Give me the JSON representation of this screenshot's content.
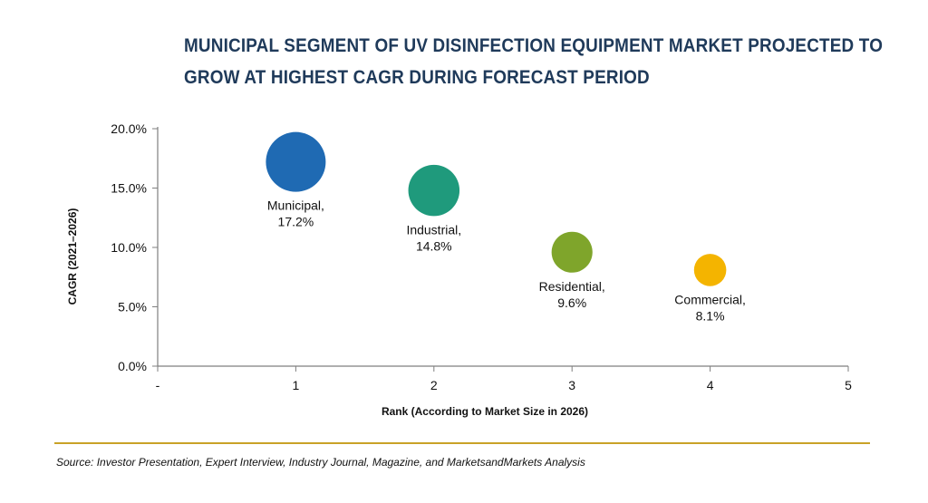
{
  "title_lines": [
    "MUNICIPAL SEGMENT OF UV DISINFECTION EQUIPMENT MARKET PROJECTED TO",
    "GROW AT HIGHEST CAGR DURING FORECAST PERIOD"
  ],
  "source": "Source: Investor Presentation, Expert Interview, Industry Journal, Magazine, and MarketsandMarkets Analysis",
  "chart_data": {
    "type": "scatter",
    "title": "MUNICIPAL SEGMENT OF UV DISINFECTION EQUIPMENT MARKET PROJECTED TO GROW AT HIGHEST CAGR DURING FORECAST PERIOD",
    "xlabel": "Rank (According to Market Size in 2026)",
    "ylabel": "CAGR (2021–2026)",
    "xlim": [
      0,
      5
    ],
    "ylim": [
      0,
      20
    ],
    "x_ticks": [
      "-",
      "1",
      "2",
      "3",
      "4",
      "5"
    ],
    "y_ticks": [
      "0.0%",
      "5.0%",
      "10.0%",
      "15.0%",
      "20.0%"
    ],
    "grid": false,
    "points": [
      {
        "label": "Municipal,",
        "value_label": "17.2%",
        "x": 1,
        "y": 17.2,
        "bubble_size": 1.0,
        "color": "#1f6ab3"
      },
      {
        "label": "Industrial,",
        "value_label": "14.8%",
        "x": 2,
        "y": 14.8,
        "bubble_size": 0.75,
        "color": "#1f9a7c"
      },
      {
        "label": "Residential,",
        "value_label": "9.6%",
        "x": 3,
        "y": 9.6,
        "bubble_size": 0.45,
        "color": "#7fa52b"
      },
      {
        "label": "Commercial,",
        "value_label": "8.1%",
        "x": 4,
        "y": 8.1,
        "bubble_size": 0.2,
        "color": "#f4b400"
      }
    ]
  }
}
